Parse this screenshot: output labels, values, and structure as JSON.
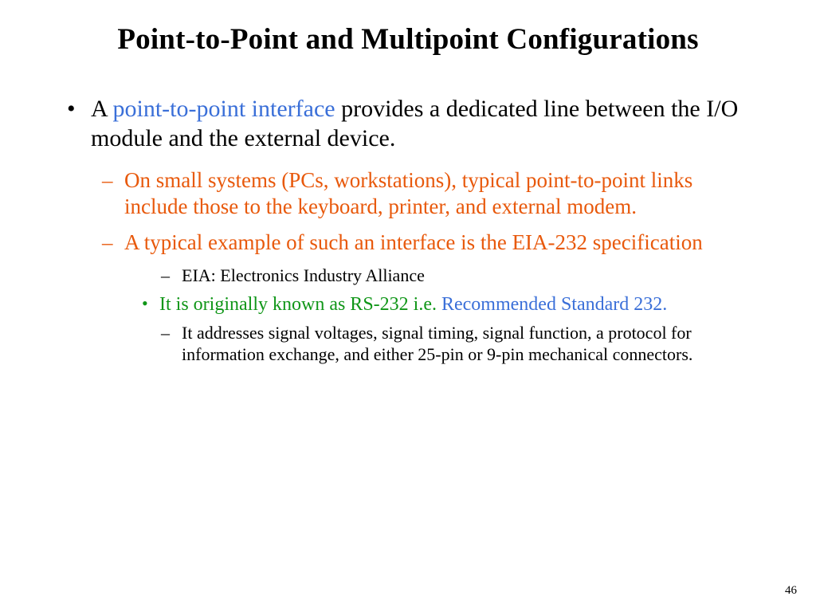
{
  "colors": {
    "text": "#000000",
    "blue": "#3a6fd8",
    "orange": "#e8590c",
    "green": "#109618",
    "background": "#ffffff"
  },
  "title": "Point-to-Point and Multipoint Configurations",
  "bullet1": {
    "pre": "A ",
    "term": "point-to-point interface",
    "post": " provides a dedicated line between the I/O module and the external device."
  },
  "sub1": "On small systems (PCs, workstations), typical point-to-point links include those to the keyboard, printer, and external modem.",
  "sub2": "A typical example of such an interface is the EIA-232 specification",
  "eia": "EIA: Electronics Industry Alliance",
  "rs232": {
    "green": "It is originally known as RS-232 i.e. ",
    "blue": "Recommended Standard 232."
  },
  "detail": "It addresses signal voltages, signal timing, signal function, a protocol for information exchange, and either 25-pin or 9-pin mechanical connectors.",
  "pageNumber": "46"
}
